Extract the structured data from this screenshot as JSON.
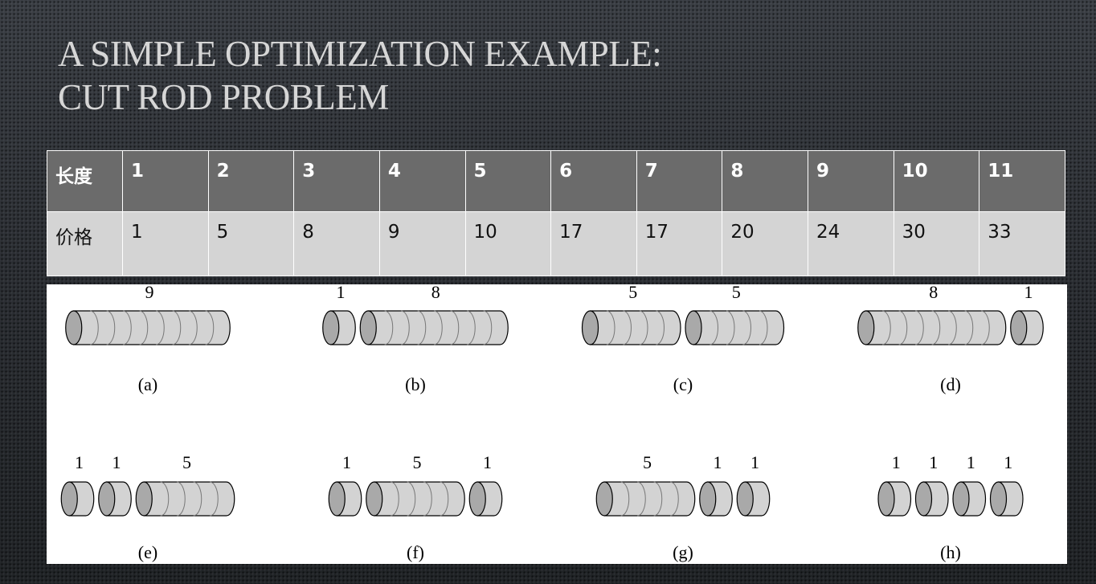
{
  "title": {
    "line1": "A SIMPLE OPTIMIZATION EXAMPLE:",
    "line2": "CUT ROD PROBLEM"
  },
  "table": {
    "length_header": "长度",
    "price_header": "价格",
    "lengths": [
      "1",
      "2",
      "3",
      "4",
      "5",
      "6",
      "7",
      "8",
      "9",
      "10",
      "11"
    ],
    "prices": [
      "1",
      "5",
      "8",
      "9",
      "10",
      "17",
      "17",
      "20",
      "24",
      "30",
      "33"
    ]
  },
  "colors": {
    "table_header_bg": "#6b6b6b",
    "table_row_bg": "#d4d4d4",
    "rod_fill": "#d3d3d3",
    "rod_cap": "#a9a9a9"
  },
  "diagram": {
    "cuts": [
      {
        "label": "(a)",
        "pieces": [
          9
        ]
      },
      {
        "label": "(b)",
        "pieces": [
          1,
          8
        ]
      },
      {
        "label": "(c)",
        "pieces": [
          5,
          5
        ]
      },
      {
        "label": "(d)",
        "pieces": [
          8,
          1
        ]
      },
      {
        "label": "(e)",
        "pieces": [
          1,
          1,
          5
        ]
      },
      {
        "label": "(f)",
        "pieces": [
          1,
          5,
          1
        ]
      },
      {
        "label": "(g)",
        "pieces": [
          5,
          1,
          1
        ]
      },
      {
        "label": "(h)",
        "pieces": [
          1,
          1,
          1,
          1
        ]
      }
    ]
  }
}
